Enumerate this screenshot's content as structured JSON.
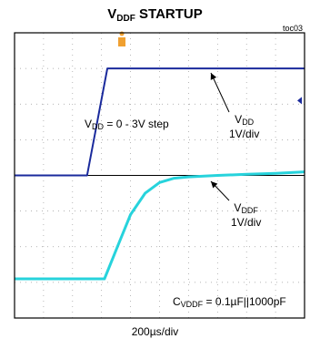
{
  "title": {
    "main": "V",
    "sub": "DDF",
    "rest": " STARTUP"
  },
  "figure_id": "toc03",
  "x_scale": "200µs/div",
  "annotations": {
    "vdd_step": {
      "pre": "V",
      "sub": "DD",
      "post": " = 0 - 3V step"
    },
    "vdd_label": {
      "pre": "V",
      "sub": "DD",
      "scale": "1V/div"
    },
    "vddf_label": {
      "pre": "V",
      "sub": "DDF",
      "scale": "1V/div"
    },
    "cap": {
      "pre": "C",
      "sub": "VDDF",
      "post": " = 0.1µF||1000pF"
    }
  },
  "colors": {
    "vdd": "#1a2a9c",
    "vddf": "#27d3dc",
    "frame": "#000000",
    "grid": "#9a9a9a"
  },
  "chart_data": {
    "type": "line",
    "title": "VDDF STARTUP",
    "xlabel": "200µs/div",
    "x_divisions": 10,
    "y_divisions": 8,
    "grid": true,
    "x_unit": "div",
    "y_unit": "div",
    "series": [
      {
        "name": "VDD",
        "scale": "1V/div",
        "x": [
          0,
          2.5,
          3.2,
          10
        ],
        "y": [
          4.0,
          4.0,
          7.0,
          7.0
        ]
      },
      {
        "name": "VDDF",
        "scale": "1V/div",
        "x": [
          0,
          3.1,
          3.6,
          4.0,
          4.5,
          5.0,
          5.5,
          6.0,
          7.0,
          8.0,
          9.0,
          10.0
        ],
        "y": [
          1.1,
          1.1,
          2.1,
          2.9,
          3.5,
          3.8,
          3.92,
          3.96,
          4.0,
          4.03,
          4.06,
          4.1
        ]
      }
    ]
  }
}
